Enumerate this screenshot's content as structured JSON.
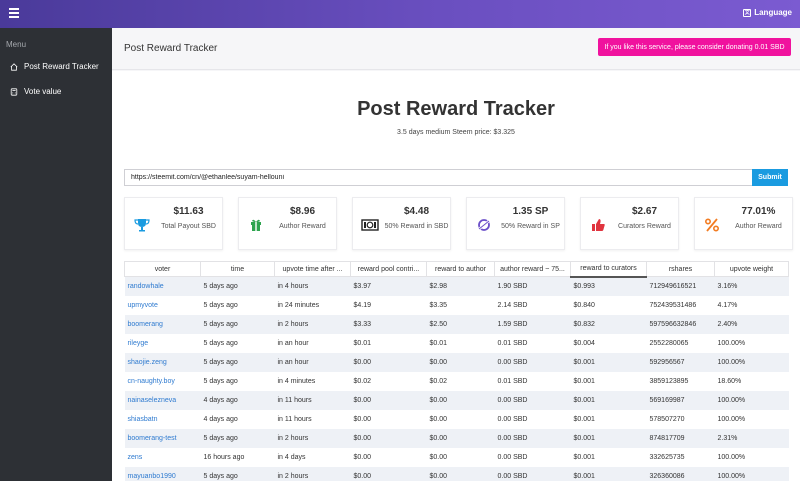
{
  "topbar": {
    "language_label": "Language"
  },
  "sidebar": {
    "menu_title": "Menu",
    "items": [
      {
        "label": "Post Reward Tracker",
        "icon": "home-icon"
      },
      {
        "label": "Vote value",
        "icon": "calculator-icon"
      }
    ]
  },
  "header": {
    "title": "Post Reward Tracker",
    "donate_label": "If you like this service, please consider donating 0.01 SBD"
  },
  "hero": {
    "title": "Post Reward Tracker",
    "subtitle": "3.5 days medium Steem price: $3.325"
  },
  "search": {
    "value": "https://steemit.com/cn/@ethanlee/suyam-hellouni",
    "submit_label": "Submit"
  },
  "stats": [
    {
      "value": "$11.63",
      "label": "Total Payout SBD",
      "icon": "trophy-icon",
      "color": "#1a9be0"
    },
    {
      "value": "$8.96",
      "label": "Author Reward",
      "icon": "gift-icon",
      "color": "#2ea44f"
    },
    {
      "value": "$4.48",
      "label": "50% Reward in SBD",
      "icon": "money-icon",
      "color": "#222222"
    },
    {
      "value": "1.35 SP",
      "label": "50% Reward in SP",
      "icon": "steem-icon",
      "color": "#6b4fc9"
    },
    {
      "value": "$2.67",
      "label": "Curators Reward",
      "icon": "thumbs-up-icon",
      "color": "#e0343f"
    },
    {
      "value": "77.01%",
      "label": "Author Reward",
      "icon": "percent-icon",
      "color": "#f27c22"
    }
  ],
  "table": {
    "columns": [
      "voter",
      "time",
      "upvote time after ...",
      "reward pool contri...",
      "reward to author",
      "author reward ~ 75...",
      "reward to curators",
      "rshares",
      "upvote weight"
    ],
    "rows": [
      [
        "randowhale",
        "5 days ago",
        "in 4 hours",
        "$3.97",
        "$2.98",
        "1.90 SBD",
        "$0.993",
        "712949616521",
        "3.16%"
      ],
      [
        "upmyvote",
        "5 days ago",
        "in 24 minutes",
        "$4.19",
        "$3.35",
        "2.14 SBD",
        "$0.840",
        "752439531486",
        "4.17%"
      ],
      [
        "boomerang",
        "5 days ago",
        "in 2 hours",
        "$3.33",
        "$2.50",
        "1.59 SBD",
        "$0.832",
        "597596632846",
        "2.40%"
      ],
      [
        "rileyge",
        "5 days ago",
        "in an hour",
        "$0.01",
        "$0.01",
        "0.01 SBD",
        "$0.004",
        "2552280065",
        "100.00%"
      ],
      [
        "shaojie.zeng",
        "5 days ago",
        "in an hour",
        "$0.00",
        "$0.00",
        "0.00 SBD",
        "$0.001",
        "592956567",
        "100.00%"
      ],
      [
        "cn-naughty.boy",
        "5 days ago",
        "in 4 minutes",
        "$0.02",
        "$0.02",
        "0.01 SBD",
        "$0.001",
        "3859123895",
        "18.60%"
      ],
      [
        "nainaselezneva",
        "4 days ago",
        "in 11 hours",
        "$0.00",
        "$0.00",
        "0.00 SBD",
        "$0.001",
        "569169987",
        "100.00%"
      ],
      [
        "shiasbatn",
        "4 days ago",
        "in 11 hours",
        "$0.00",
        "$0.00",
        "0.00 SBD",
        "$0.001",
        "578507270",
        "100.00%"
      ],
      [
        "boomerang-test",
        "5 days ago",
        "in 2 hours",
        "$0.00",
        "$0.00",
        "0.00 SBD",
        "$0.001",
        "874817709",
        "2.31%"
      ],
      [
        "zens",
        "16 hours ago",
        "in 4 days",
        "$0.00",
        "$0.00",
        "0.00 SBD",
        "$0.001",
        "332625735",
        "100.00%"
      ],
      [
        "mayuanbo1990",
        "5 days ago",
        "in 2 hours",
        "$0.00",
        "$0.00",
        "0.00 SBD",
        "$0.001",
        "326360086",
        "100.00%"
      ]
    ]
  }
}
